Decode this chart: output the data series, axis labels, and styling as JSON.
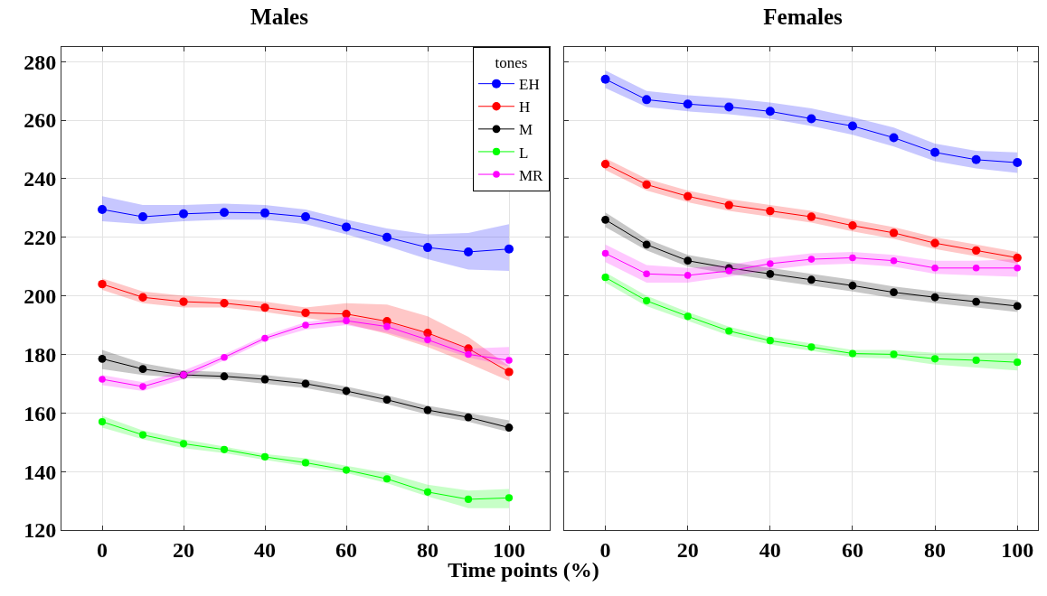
{
  "chart_data": [
    {
      "type": "line",
      "title": "Males",
      "xlabel": "Time points (%)",
      "x": [
        0,
        10,
        20,
        30,
        40,
        50,
        60,
        70,
        80,
        90,
        100
      ],
      "xlim": [
        -10,
        110
      ],
      "xticks": [
        0,
        20,
        40,
        60,
        80,
        100
      ],
      "ylim": [
        120,
        285
      ],
      "yticks": [
        120,
        140,
        160,
        180,
        200,
        220,
        240,
        260,
        280
      ],
      "grid": true,
      "legend": "top right",
      "legend_title": "tones",
      "marker": "circle",
      "line_style": "solid",
      "series": [
        {
          "name": "EH",
          "color": "#0000ff",
          "values": [
            229.5,
            227,
            228,
            228.5,
            228.3,
            227,
            223.5,
            220,
            216.5,
            215,
            216
          ],
          "upper": [
            234,
            231,
            231,
            231.5,
            231,
            229.5,
            226,
            223,
            221,
            221.5,
            224.5
          ],
          "lower": [
            225.5,
            224.5,
            225.5,
            226,
            226,
            224.5,
            221,
            217,
            212.5,
            209,
            208.5
          ]
        },
        {
          "name": "H",
          "color": "#ff0000",
          "values": [
            204,
            199.5,
            198,
            197.5,
            196,
            194.2,
            193.8,
            191.3,
            187.3,
            182,
            174
          ],
          "upper": [
            206,
            201.5,
            200,
            199,
            198,
            196,
            197.5,
            197,
            193,
            186,
            176
          ],
          "lower": [
            202,
            197.5,
            196,
            196,
            194.5,
            192.5,
            190.5,
            187,
            182.5,
            177,
            171
          ]
        },
        {
          "name": "M",
          "color": "#000000",
          "values": [
            178.5,
            175,
            173,
            172.5,
            171.5,
            170,
            167.5,
            164.5,
            161,
            158.5,
            155
          ],
          "upper": [
            181.5,
            177,
            174.5,
            174,
            173,
            171.5,
            169,
            166,
            162.5,
            160,
            157.5
          ],
          "lower": [
            175,
            173,
            172,
            171.5,
            170,
            168.5,
            166,
            163,
            159.5,
            157,
            153.5
          ]
        },
        {
          "name": "L",
          "color": "#00ff00",
          "values": [
            157,
            152.5,
            149.5,
            147.5,
            145,
            143,
            140.5,
            137.5,
            133,
            130.5,
            131
          ],
          "upper": [
            159,
            154,
            151,
            148.5,
            146,
            144.5,
            142,
            139.5,
            135.5,
            133.5,
            134
          ],
          "lower": [
            155,
            151,
            148,
            146.3,
            144,
            141.8,
            139.5,
            136,
            131.5,
            127.5,
            127.5
          ]
        },
        {
          "name": "MR",
          "color": "#ff00ff",
          "values": [
            171.5,
            169,
            173,
            179,
            185.5,
            190,
            191.5,
            189.5,
            185,
            180,
            178
          ],
          "upper": [
            173,
            170.5,
            174.5,
            180,
            186.5,
            191,
            193,
            191,
            187,
            182,
            182.5
          ],
          "lower": [
            169.5,
            167.5,
            171.5,
            178,
            184.5,
            188.5,
            190,
            187.5,
            183.5,
            179,
            176
          ]
        }
      ]
    },
    {
      "type": "line",
      "title": "Females",
      "x": [
        0,
        10,
        20,
        30,
        40,
        50,
        60,
        70,
        80,
        90,
        100
      ],
      "xlim": [
        -10,
        105
      ],
      "xticks": [
        0,
        20,
        40,
        60,
        80,
        100
      ],
      "ylim": [
        120,
        285
      ],
      "yticks": [
        120,
        140,
        160,
        180,
        200,
        220,
        240,
        260,
        280
      ],
      "grid": true,
      "tick_labels": "x",
      "marker": "circle",
      "line_style": "solid",
      "series": [
        {
          "color": "#0000ff",
          "values": [
            274,
            267,
            265.5,
            264.5,
            263,
            260.5,
            258,
            254,
            249,
            246.5,
            245.5
          ],
          "upper": [
            277,
            270,
            268.5,
            267.5,
            266,
            264,
            261,
            257.5,
            252,
            249.5,
            249
          ],
          "lower": [
            271,
            264.5,
            263,
            262,
            260.5,
            258,
            255,
            251,
            246,
            243.5,
            242
          ]
        },
        {
          "color": "#ff0000",
          "values": [
            245,
            238,
            234,
            231,
            229,
            227,
            224,
            221.5,
            218,
            215.5,
            213
          ],
          "upper": [
            247,
            240,
            236,
            233,
            231,
            229,
            226,
            223.5,
            220,
            217.5,
            215
          ],
          "lower": [
            243,
            236,
            232,
            229,
            227,
            225,
            222,
            219.5,
            216,
            213.5,
            211
          ]
        },
        {
          "color": "#000000",
          "values": [
            226,
            217.5,
            212,
            209.5,
            207.5,
            205.5,
            203.5,
            201.2,
            199.5,
            198,
            196.5
          ],
          "upper": [
            228.5,
            219.5,
            214,
            211.5,
            209.5,
            207.5,
            205.5,
            203.2,
            201.5,
            200,
            198.5
          ],
          "lower": [
            223.5,
            215.5,
            210,
            207.5,
            205.5,
            203.5,
            201.5,
            199.2,
            197.5,
            196,
            194.5
          ]
        },
        {
          "color": "#00ff00",
          "values": [
            206.3,
            198.3,
            193,
            188,
            184.7,
            182.5,
            180.3,
            180,
            178.5,
            178,
            177.3
          ],
          "upper": [
            208,
            200,
            194.5,
            189.5,
            186,
            183.8,
            181.5,
            181.5,
            180.5,
            180.5,
            180.5
          ],
          "lower": [
            204.5,
            196.5,
            191.5,
            186.5,
            183.4,
            181.2,
            179,
            178.5,
            176.5,
            175.5,
            174.5
          ]
        },
        {
          "color": "#ff00ff",
          "values": [
            214.5,
            207.5,
            207,
            208.5,
            211,
            212.5,
            213,
            212,
            209.5,
            209.5,
            209.5
          ],
          "upper": [
            217.5,
            210.5,
            209.5,
            210.5,
            213,
            214.5,
            215,
            214,
            212,
            212,
            212.5
          ],
          "lower": [
            211.5,
            204.5,
            204.5,
            206.5,
            209,
            210.5,
            211,
            210,
            207.5,
            207,
            206.5
          ]
        }
      ]
    }
  ]
}
